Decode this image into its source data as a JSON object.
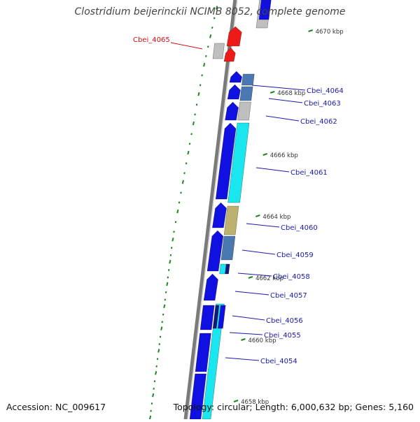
{
  "title": "Clostridium beijerinckii NCIMB 8052, complete genome",
  "accession": "Accession: NC_009617",
  "summary": "Topology: circular; Length: 6,000,632 bp; Genes: 5,160",
  "colors": {
    "blue": "#1010e0",
    "cyan": "#19e6ee",
    "red": "#ee1a1a",
    "gray": "#bfbfbf",
    "steel": "#4a78b0",
    "olive": "#bdb170",
    "navy": "#15157a",
    "tick": "#1a8a1a",
    "label_blue": "#1a1aaa",
    "label_red": "#cc1111"
  },
  "ticks": [
    {
      "label": "4670 kbp"
    },
    {
      "label": "4668 kbp"
    },
    {
      "label": "4666 kbp"
    },
    {
      "label": "4664 kbp"
    },
    {
      "label": "4662 kbp"
    },
    {
      "label": "4660 kbp"
    },
    {
      "label": "4658 kbp"
    }
  ],
  "genes": [
    {
      "label": "Cbei_4065",
      "color": "red"
    },
    {
      "label": "Cbei_4064",
      "color": "label_blue"
    },
    {
      "label": "Cbei_4063",
      "color": "label_blue"
    },
    {
      "label": "Cbei_4062",
      "color": "label_blue"
    },
    {
      "label": "Cbei_4061",
      "color": "label_blue"
    },
    {
      "label": "Cbei_4060",
      "color": "label_blue"
    },
    {
      "label": "Cbei_4059",
      "color": "label_blue"
    },
    {
      "label": "Cbei_4058",
      "color": "label_blue"
    },
    {
      "label": "Cbei_4057",
      "color": "label_blue"
    },
    {
      "label": "Cbei_4056",
      "color": "label_blue"
    },
    {
      "label": "Cbei_4055",
      "color": "label_blue"
    },
    {
      "label": "Cbei_4054",
      "color": "label_blue"
    }
  ]
}
